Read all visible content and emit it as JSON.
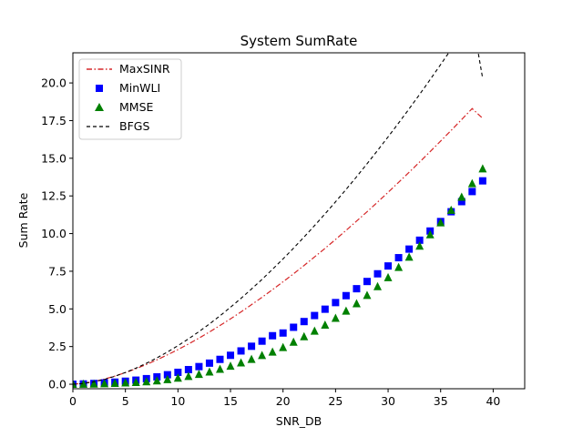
{
  "chart_data": {
    "type": "line",
    "title": "System SumRate",
    "xlabel": "SNR_DB",
    "ylabel": "Sum Rate",
    "xlim": [
      0,
      43
    ],
    "ylim": [
      -0.3,
      22
    ],
    "xticks": [
      0,
      5,
      10,
      15,
      20,
      25,
      30,
      35,
      40
    ],
    "yticks": [
      0.0,
      2.5,
      5.0,
      7.5,
      10.0,
      12.5,
      15.0,
      17.5,
      20.0
    ],
    "xtick_labels": [
      "0",
      "5",
      "10",
      "15",
      "20",
      "25",
      "30",
      "35",
      "40"
    ],
    "ytick_labels": [
      "0.0",
      "2.5",
      "5.0",
      "7.5",
      "10.0",
      "12.5",
      "15.0",
      "17.5",
      "20.0"
    ],
    "grid": false,
    "legend_position": "top-left",
    "x": [
      0,
      1,
      2,
      3,
      4,
      5,
      6,
      7,
      8,
      9,
      10,
      11,
      12,
      13,
      14,
      15,
      16,
      17,
      18,
      19,
      20,
      21,
      22,
      23,
      24,
      25,
      26,
      27,
      28,
      29,
      30,
      31,
      32,
      33,
      34,
      35,
      36,
      37,
      38,
      39
    ],
    "series": [
      {
        "name": "MaxSINR",
        "style": "dashdot-line",
        "color": "#d62728",
        "values": [
          0.0,
          0.06,
          0.18,
          0.34,
          0.54,
          0.77,
          1.03,
          1.31,
          1.62,
          1.95,
          2.3,
          2.67,
          3.06,
          3.47,
          3.9,
          4.34,
          4.8,
          5.28,
          5.77,
          6.28,
          6.8,
          7.33,
          7.88,
          8.45,
          9.02,
          9.61,
          10.21,
          10.83,
          11.45,
          12.09,
          12.74,
          13.4,
          14.07,
          14.75,
          15.44,
          16.14,
          16.85,
          17.57,
          18.3,
          17.65
        ]
      },
      {
        "name": "MinWLI",
        "style": "square-marker",
        "color": "#0000ff",
        "values": [
          0.0,
          0.02,
          0.05,
          0.09,
          0.14,
          0.2,
          0.27,
          0.37,
          0.49,
          0.63,
          0.79,
          0.97,
          1.17,
          1.4,
          1.65,
          1.92,
          2.21,
          2.52,
          2.86,
          3.22,
          3.4,
          3.78,
          4.16,
          4.56,
          4.98,
          5.42,
          5.88,
          6.34,
          6.82,
          7.33,
          7.85,
          8.4,
          8.97,
          9.56,
          10.17,
          10.8,
          11.45,
          12.12,
          12.79,
          13.5
        ]
      },
      {
        "name": "MMSE",
        "style": "triangle-marker",
        "color": "#008000",
        "values": [
          0.0,
          0.01,
          0.02,
          0.04,
          0.06,
          0.09,
          0.12,
          0.17,
          0.23,
          0.31,
          0.41,
          0.52,
          0.66,
          0.82,
          1.0,
          1.2,
          1.42,
          1.66,
          1.91,
          2.14,
          2.44,
          2.8,
          3.16,
          3.53,
          3.93,
          4.38,
          4.86,
          5.35,
          5.9,
          6.48,
          7.08,
          7.76,
          8.44,
          9.17,
          9.93,
          10.72,
          11.55,
          12.42,
          13.32,
          14.3
        ]
      },
      {
        "name": "BFGS",
        "style": "dashed-line",
        "color": "#000000",
        "values": [
          0.0,
          0.05,
          0.16,
          0.32,
          0.53,
          0.78,
          1.07,
          1.39,
          1.75,
          2.14,
          2.56,
          3.01,
          3.49,
          4.0,
          4.54,
          5.11,
          5.7,
          6.32,
          6.96,
          7.63,
          8.32,
          9.03,
          9.77,
          10.53,
          11.31,
          12.11,
          12.93,
          13.77,
          14.64,
          15.52,
          16.42,
          17.34,
          18.28,
          19.24,
          20.22,
          21.22,
          22.23,
          23.26,
          24.31,
          20.3
        ]
      }
    ]
  }
}
